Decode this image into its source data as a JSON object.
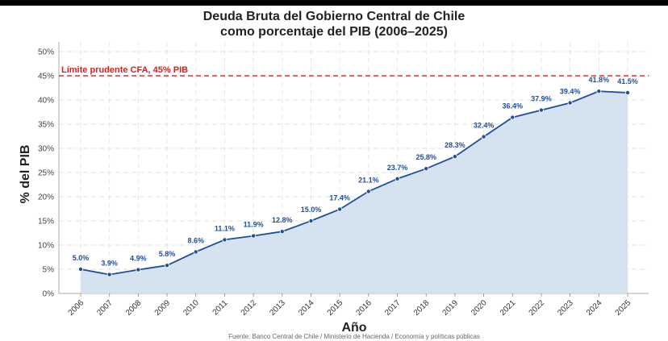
{
  "chart_data": {
    "type": "area",
    "title_line1": "Deuda Bruta del Gobierno Central de Chile",
    "title_line2": "como porcentaje del PIB (2006–2025)",
    "xlabel": "Año",
    "ylabel": "% del PIB",
    "source": "Fuente: Banco Central de Chile / Ministerio de Hacienda / Economía y políticas públicas",
    "ylim": [
      0,
      52
    ],
    "yticks": [
      0,
      5,
      10,
      15,
      20,
      25,
      30,
      35,
      40,
      45,
      50
    ],
    "ytick_labels": [
      "0%",
      "5%",
      "10%",
      "15%",
      "20%",
      "25%",
      "30%",
      "35%",
      "40%",
      "45%",
      "50%"
    ],
    "grid": true,
    "x": [
      "2006",
      "2007",
      "2008",
      "2009",
      "2010",
      "2011",
      "2012",
      "2013",
      "2014",
      "2015",
      "2016",
      "2017",
      "2018",
      "2019",
      "2020",
      "2021",
      "2022",
      "2023",
      "2024",
      "2025"
    ],
    "values": [
      5.0,
      3.9,
      4.9,
      5.8,
      8.6,
      11.1,
      11.9,
      12.8,
      15.0,
      17.4,
      21.1,
      23.7,
      25.8,
      28.3,
      32.4,
      36.4,
      37.9,
      39.4,
      41.8,
      41.5
    ],
    "data_labels": [
      "5.0%",
      "3.9%",
      "4.9%",
      "5.8%",
      "8.6%",
      "11.1%",
      "11.9%",
      "12.8%",
      "15.0%",
      "17.4%",
      "21.1%",
      "23.7%",
      "25.8%",
      "28.3%",
      "32.4%",
      "36.4%",
      "37.9%",
      "39.4%",
      "41.8%",
      "41.5%"
    ],
    "reference_line": {
      "value": 45,
      "label": "Límite prudente CFA, 45% PIB",
      "color": "#e03030"
    },
    "colors": {
      "line": "#1f4e9c",
      "fill": "#d3e0ef",
      "labels": "#1f4e9c"
    }
  }
}
